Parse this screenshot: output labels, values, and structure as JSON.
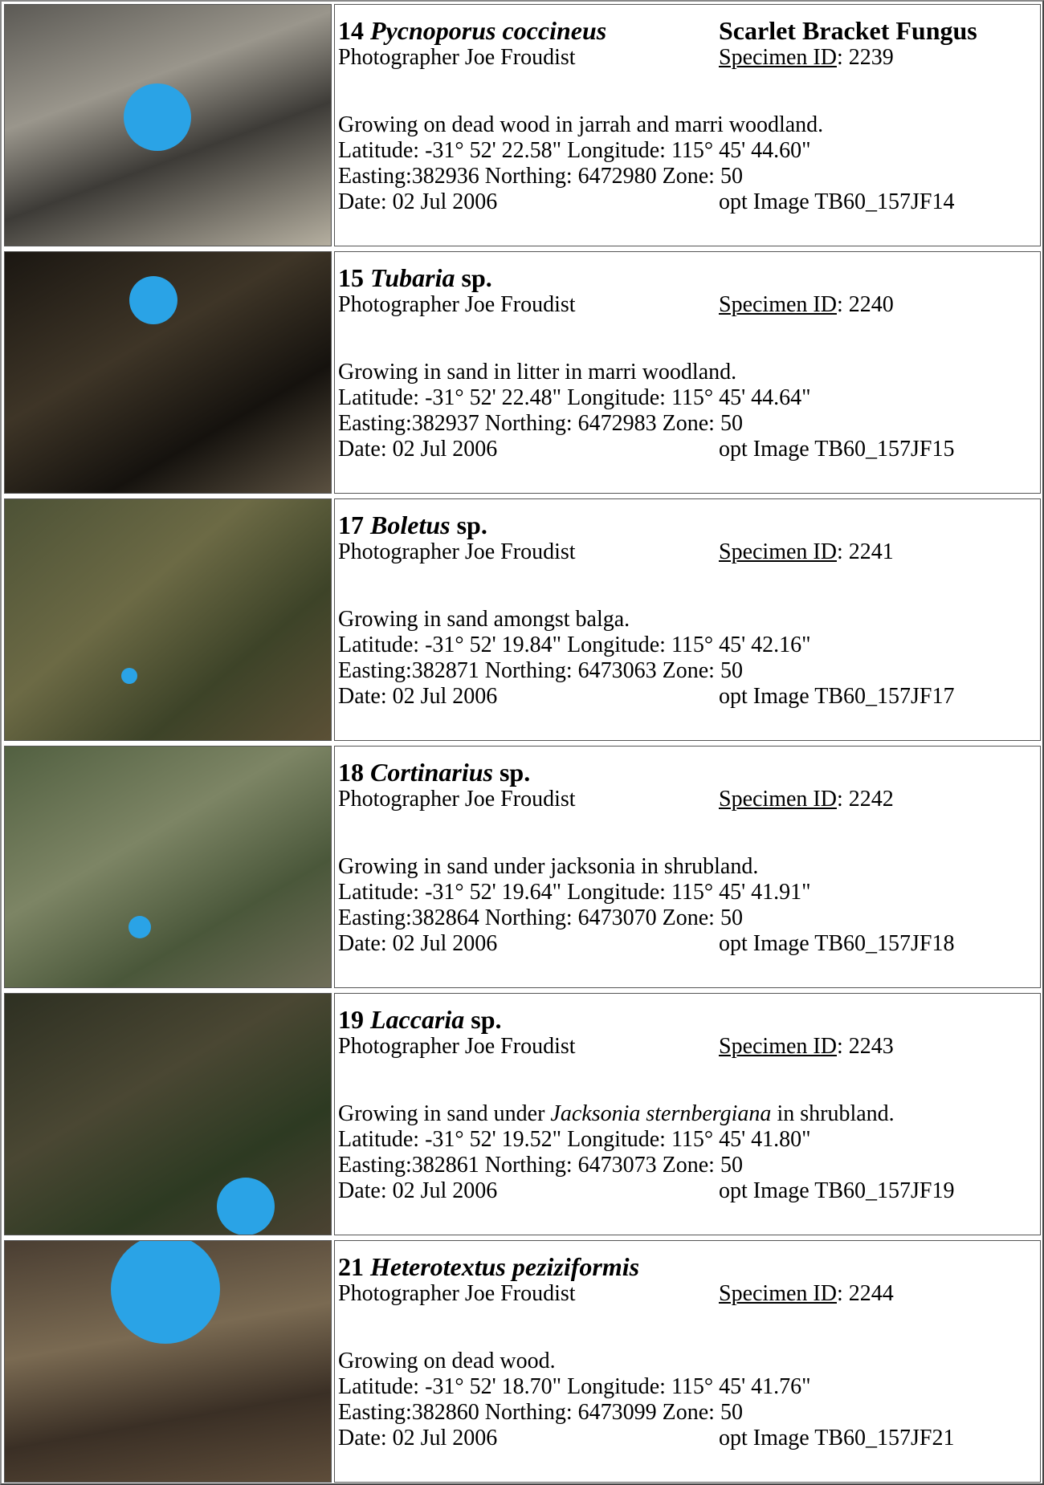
{
  "records": [
    {
      "number": "14",
      "name": "Pycnoporus coccineus",
      "name_suffix": "",
      "common_name": "Scarlet Bracket Fungus",
      "photographer": "Photographer Joe Froudist",
      "specimen_label": "Specimen ID",
      "specimen_id": ": 2239",
      "habitat": [
        {
          "text": "Growing on dead wood in jarrah and marri woodland."
        }
      ],
      "latlong": "Latitude: -31° 52' 22.58\" Longitude: 115° 45' 44.60\"",
      "grid": "Easting:382936 Northing: 6472980 Zone: 50",
      "date": "Date: 02 Jul 2006",
      "image": "opt Image TB60_157JF14"
    },
    {
      "number": "15",
      "name": "Tubaria",
      "name_suffix": " sp.",
      "common_name": "",
      "photographer": "Photographer Joe Froudist",
      "specimen_label": "Specimen ID",
      "specimen_id": ": 2240",
      "habitat": [
        {
          "text": "Growing in sand in litter in marri woodland."
        }
      ],
      "latlong": "Latitude: -31° 52' 22.48\" Longitude: 115° 45' 44.64\"",
      "grid": "Easting:382937 Northing: 6472983 Zone: 50",
      "date": "Date: 02 Jul 2006",
      "image": "opt Image TB60_157JF15"
    },
    {
      "number": "17",
      "name": "Boletus",
      "name_suffix": " sp.",
      "common_name": "",
      "photographer": "Photographer Joe Froudist",
      "specimen_label": "Specimen ID",
      "specimen_id": ": 2241",
      "habitat": [
        {
          "text": "Growing in sand amongst balga."
        }
      ],
      "latlong": "Latitude: -31° 52' 19.84\" Longitude: 115° 45' 42.16\"",
      "grid": "Easting:382871 Northing: 6473063 Zone: 50",
      "date": "Date: 02 Jul 2006",
      "image": "opt Image TB60_157JF17"
    },
    {
      "number": "18",
      "name": "Cortinarius",
      "name_suffix": " sp.",
      "common_name": "",
      "photographer": "Photographer Joe Froudist",
      "specimen_label": "Specimen ID",
      "specimen_id": ": 2242",
      "habitat": [
        {
          "text": "Growing in sand under jacksonia in shrubland."
        }
      ],
      "latlong": "Latitude: -31° 52' 19.64\" Longitude: 115° 45' 41.91\"",
      "grid": "Easting:382864 Northing: 6473070 Zone: 50",
      "date": "Date: 02 Jul 2006",
      "image": "opt Image TB60_157JF18"
    },
    {
      "number": "19",
      "name": "Laccaria",
      "name_suffix": " sp.",
      "common_name": "",
      "photographer": "Photographer Joe Froudist",
      "specimen_label": "Specimen ID",
      "specimen_id": ": 2243",
      "habitat": [
        {
          "text": "Growing in sand under "
        },
        {
          "text": "Jacksonia sternbergiana",
          "italic": true
        },
        {
          "text": " in shrubland."
        }
      ],
      "latlong": "Latitude: -31° 52' 19.52\" Longitude: 115° 45' 41.80\"",
      "grid": "Easting:382861 Northing: 6473073 Zone: 50",
      "date": "Date: 02 Jul 2006",
      "image": "opt Image TB60_157JF19"
    },
    {
      "number": "21",
      "name": "Heterotextus peziziformis",
      "name_suffix": "",
      "common_name": "",
      "photographer": "Photographer Joe Froudist",
      "specimen_label": "Specimen ID",
      "specimen_id": ": 2244",
      "habitat": [
        {
          "text": "Growing on dead wood."
        }
      ],
      "latlong": "Latitude: -31° 52' 18.70\" Longitude: 115° 45' 41.76\"",
      "grid": "Easting:382860 Northing: 6473099 Zone: 50",
      "date": "Date: 02 Jul 2006",
      "image": "opt Image TB60_157JF21"
    }
  ]
}
